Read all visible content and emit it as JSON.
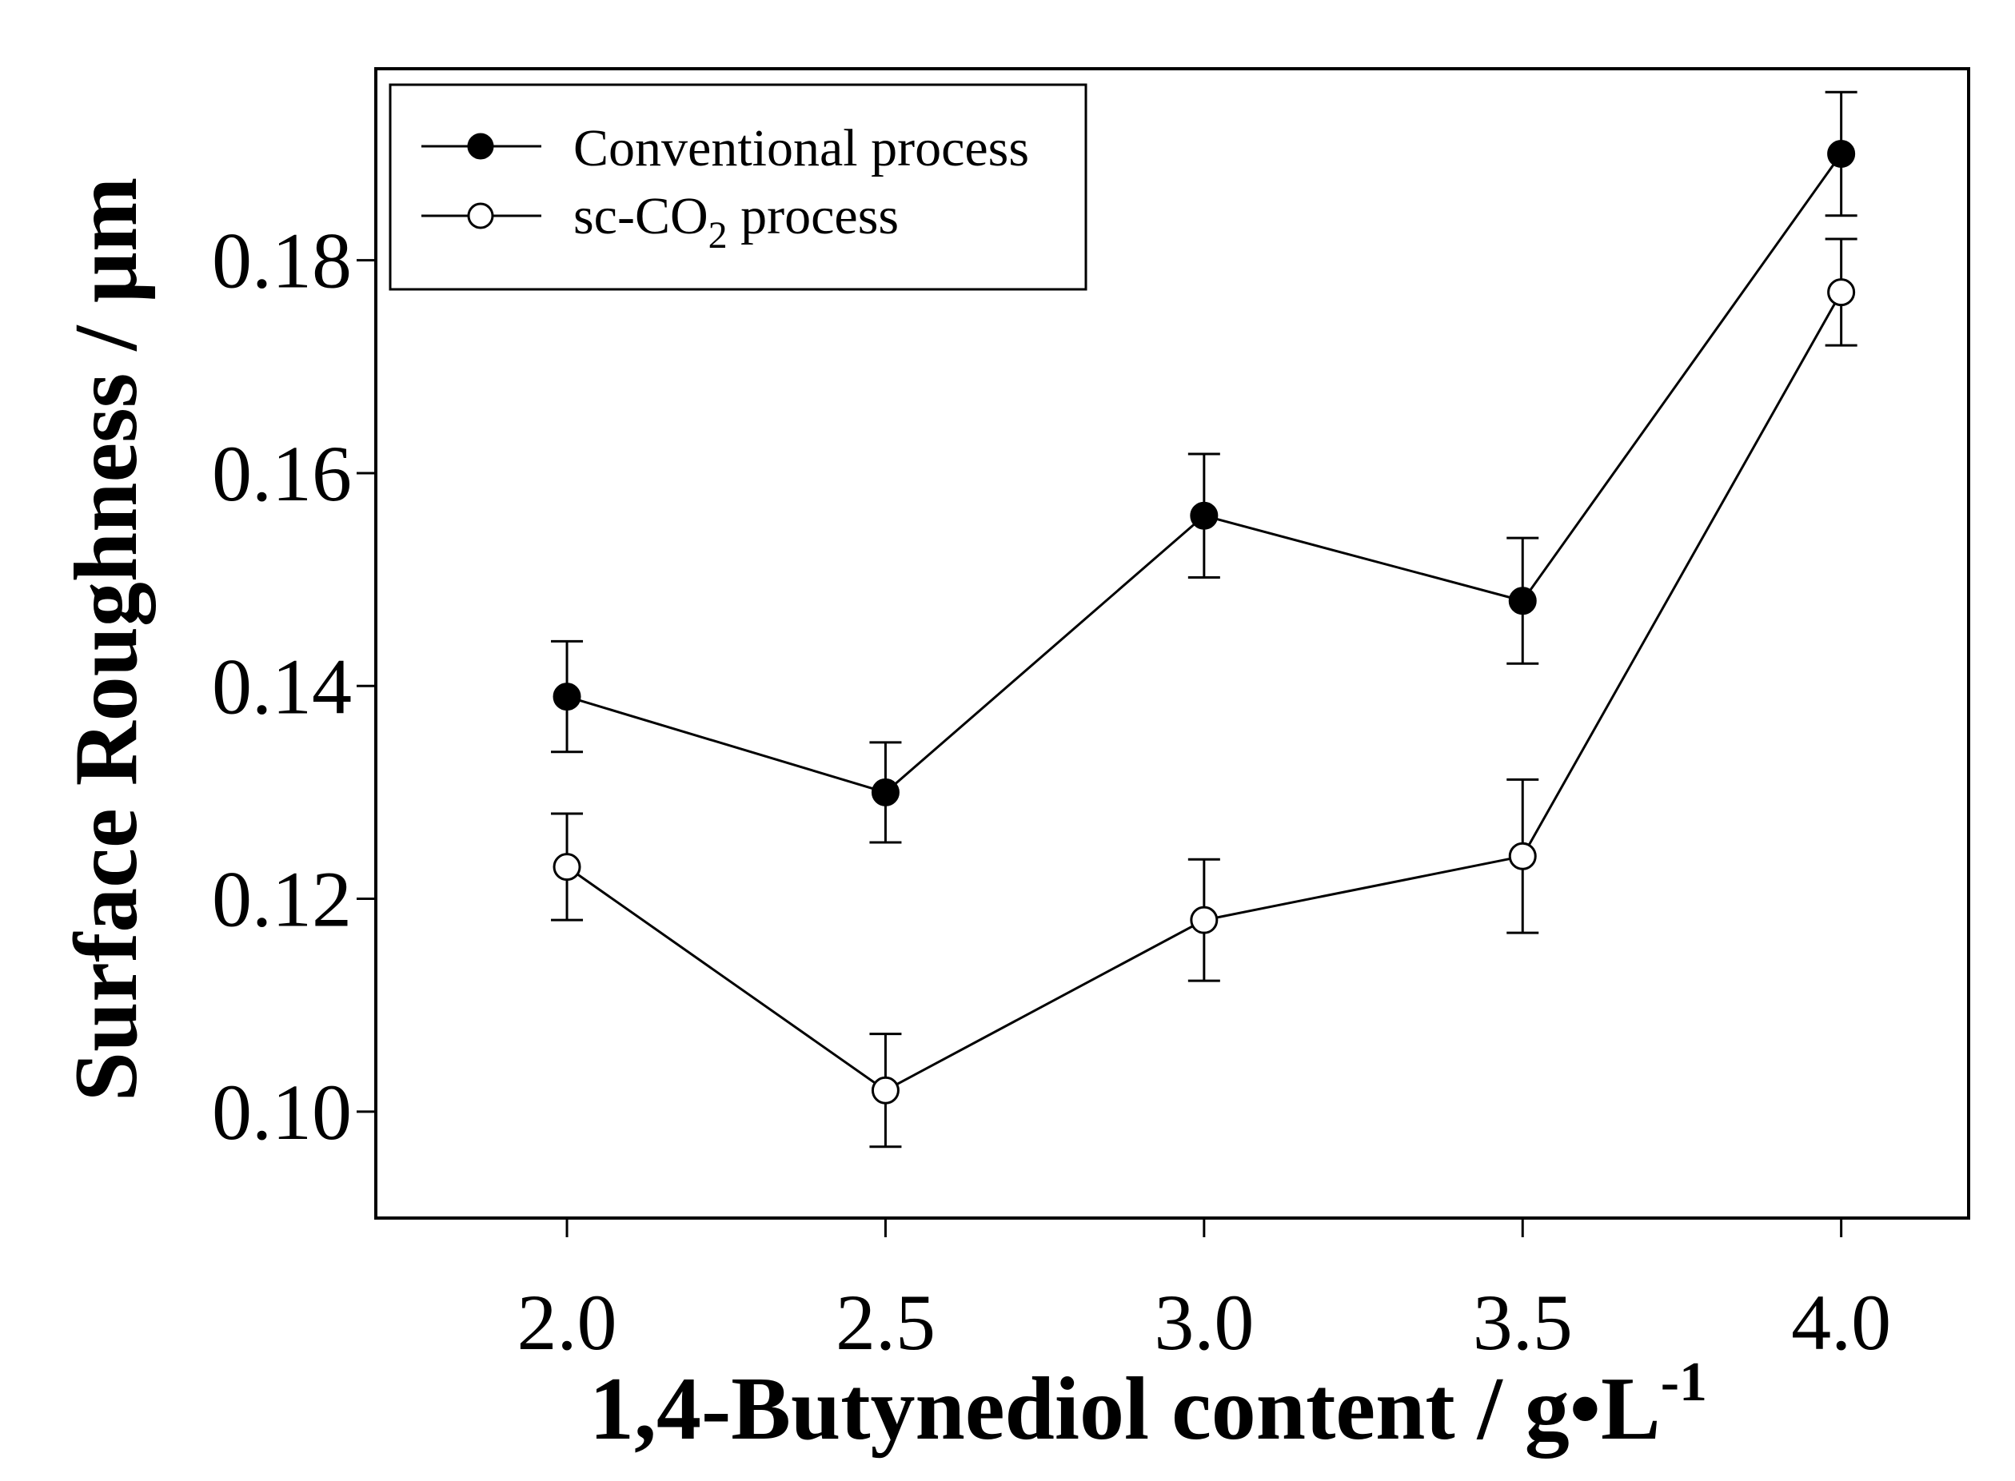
{
  "chart_data": {
    "type": "line",
    "title": "",
    "xlabel": "1,4-Butynediol content / g•L",
    "xlabel_superscript": "-1",
    "ylabel": "Surface Roughness / µm",
    "x": [
      2.0,
      2.5,
      3.0,
      3.5,
      4.0
    ],
    "xticks": [
      "2.0",
      "2.5",
      "3.0",
      "3.5",
      "4.0"
    ],
    "yticks": [
      "0.10",
      "0.12",
      "0.14",
      "0.16",
      "0.18"
    ],
    "xlim": [
      1.7,
      4.2
    ],
    "ylim": [
      0.09,
      0.198
    ],
    "grid": false,
    "legend_position": "top-left",
    "series": [
      {
        "name": "Conventional process",
        "marker": "filled-circle",
        "values": [
          0.139,
          0.13,
          0.156,
          0.148,
          0.19
        ],
        "errors": [
          0.0052,
          0.0047,
          0.0058,
          0.0059,
          0.0058
        ]
      },
      {
        "name": "sc-CO2 process",
        "marker": "open-circle",
        "values": [
          0.123,
          0.102,
          0.118,
          0.124,
          0.177
        ],
        "errors": [
          0.005,
          0.0053,
          0.0057,
          0.0072,
          0.005
        ]
      }
    ]
  }
}
